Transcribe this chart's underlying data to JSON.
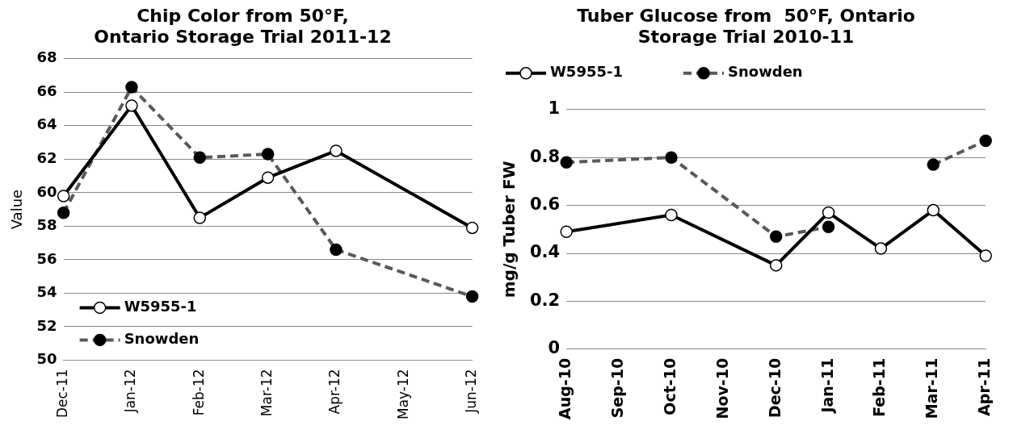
{
  "chart_data": [
    {
      "type": "line",
      "title": [
        "Chip Color from 50°F,",
        "Ontario Storage Trial 2011-12"
      ],
      "ylabel": "Value",
      "categories": [
        "Dec-11",
        "Jan-12",
        "Feb-12",
        "Mar-12",
        "Apr-12",
        "May-12",
        "Jun-12"
      ],
      "series": [
        {
          "name": "W5955-1",
          "color": "#000000",
          "line_style": "solid",
          "x": [
            "Dec-11",
            "Jan-12",
            "Feb-12",
            "Mar-12",
            "Apr-12",
            "Jun-12"
          ],
          "values": [
            59.8,
            65.2,
            58.5,
            60.9,
            62.5,
            57.9
          ]
        },
        {
          "name": "Snowden",
          "color": "#595959",
          "line_style": "dashed",
          "x": [
            "Dec-11",
            "Jan-12",
            "Feb-12",
            "Mar-12",
            "Apr-12",
            "Jun-12"
          ],
          "values": [
            58.8,
            66.3,
            62.1,
            62.3,
            56.6,
            53.8
          ]
        }
      ],
      "ylim": [
        50,
        68
      ],
      "yticks": [
        50,
        52,
        54,
        56,
        58,
        60,
        62,
        64,
        66,
        68
      ],
      "grid": "y",
      "legend": "bottom left",
      "marker": "circle"
    },
    {
      "type": "line",
      "title": [
        "Tuber Glucose from  50°F, Ontario",
        "Storage Trial 2010-11"
      ],
      "ylabel": "mg/g Tuber FW",
      "categories": [
        "Aug-10",
        "Sep-10",
        "Oct-10",
        "Nov-10",
        "Dec-10",
        "Jan-11",
        "Feb-11",
        "Mar-11",
        "Apr-11"
      ],
      "series": [
        {
          "name": "W5955-1",
          "color": "#000000",
          "line_style": "solid",
          "x": [
            "Aug-10",
            "Oct-10",
            "Dec-10",
            "Jan-11",
            "Feb-11",
            "Mar-11",
            "Apr-11"
          ],
          "values": [
            0.49,
            0.56,
            0.35,
            0.57,
            0.42,
            0.58,
            0.39
          ]
        },
        {
          "name": "Snowden",
          "color": "#595959",
          "line_style": "dashed",
          "x": [
            "Aug-10",
            "Oct-10",
            "Dec-10",
            "Jan-11",
            "Feb-11",
            "Mar-11",
            "Apr-11"
          ],
          "values": [
            0.78,
            0.8,
            0.47,
            0.51,
            null,
            0.77,
            0.87
          ]
        }
      ],
      "ylim": [
        0,
        1
      ],
      "yticks": [
        0,
        0.2,
        0.4,
        0.6,
        0.8,
        1
      ],
      "grid": "y",
      "legend": "top",
      "marker": "circle"
    }
  ]
}
